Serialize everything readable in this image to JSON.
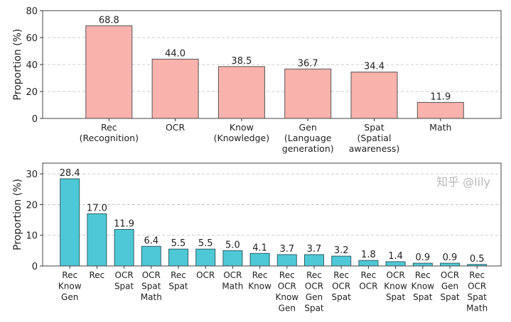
{
  "chart_data": [
    {
      "type": "bar",
      "categories": [
        [
          "Rec",
          "(Recognition)"
        ],
        [
          "OCR"
        ],
        [
          "Know",
          "(Knowledge)"
        ],
        [
          "Gen",
          "(Language",
          "generation)"
        ],
        [
          "Spat",
          "(Spatial",
          "awareness)"
        ],
        [
          "Math"
        ]
      ],
      "values": [
        68.8,
        44.0,
        38.5,
        36.7,
        34.4,
        11.9
      ],
      "data_labels": [
        "68.8",
        "44.0",
        "38.5",
        "36.7",
        "34.4",
        "11.9"
      ],
      "ylabel": "Proportion (%)",
      "ylim": [
        0,
        80
      ],
      "yticks": [
        0,
        20,
        40,
        60,
        80
      ],
      "grid": "horizontal dashed",
      "bar_color": "#f9b2ac",
      "edge_color": "#555555"
    },
    {
      "type": "bar",
      "categories": [
        [
          "Rec",
          "Know",
          "Gen"
        ],
        [
          "Rec"
        ],
        [
          "OCR",
          "Spat"
        ],
        [
          "OCR",
          "Spat",
          "Math"
        ],
        [
          "Rec",
          "Spat"
        ],
        [
          "OCR"
        ],
        [
          "OCR",
          "Math"
        ],
        [
          "Rec",
          "Know"
        ],
        [
          "Rec",
          "OCR",
          "Know",
          "Gen"
        ],
        [
          "Rec",
          "OCR",
          "Gen",
          "Spat"
        ],
        [
          "Rec",
          "OCR",
          "Spat"
        ],
        [
          "Rec",
          "OCR"
        ],
        [
          "OCR",
          "Know",
          "Spat"
        ],
        [
          "Rec",
          "Know",
          "Spat"
        ],
        [
          "OCR",
          "Gen",
          "Spat"
        ],
        [
          "Rec",
          "OCR",
          "Spat",
          "Math"
        ]
      ],
      "values": [
        28.4,
        17.0,
        11.9,
        6.4,
        5.5,
        5.5,
        5.0,
        4.1,
        3.7,
        3.7,
        3.2,
        1.8,
        1.4,
        0.9,
        0.9,
        0.5
      ],
      "data_labels": [
        "28.4",
        "17.0",
        "11.9",
        "6.4",
        "5.5",
        "5.5",
        "5.0",
        "4.1",
        "3.7",
        "3.7",
        "3.2",
        "1.8",
        "1.4",
        "0.9",
        "0.9",
        "0.5"
      ],
      "ylabel": "Proportion (%)",
      "ylim": [
        0,
        33.5
      ],
      "yticks": [
        0,
        10,
        20,
        30
      ],
      "grid": "horizontal dashed",
      "bar_color": "#4ec8d6",
      "edge_color": "#2f5f66"
    }
  ],
  "watermark": "知乎 @lily"
}
